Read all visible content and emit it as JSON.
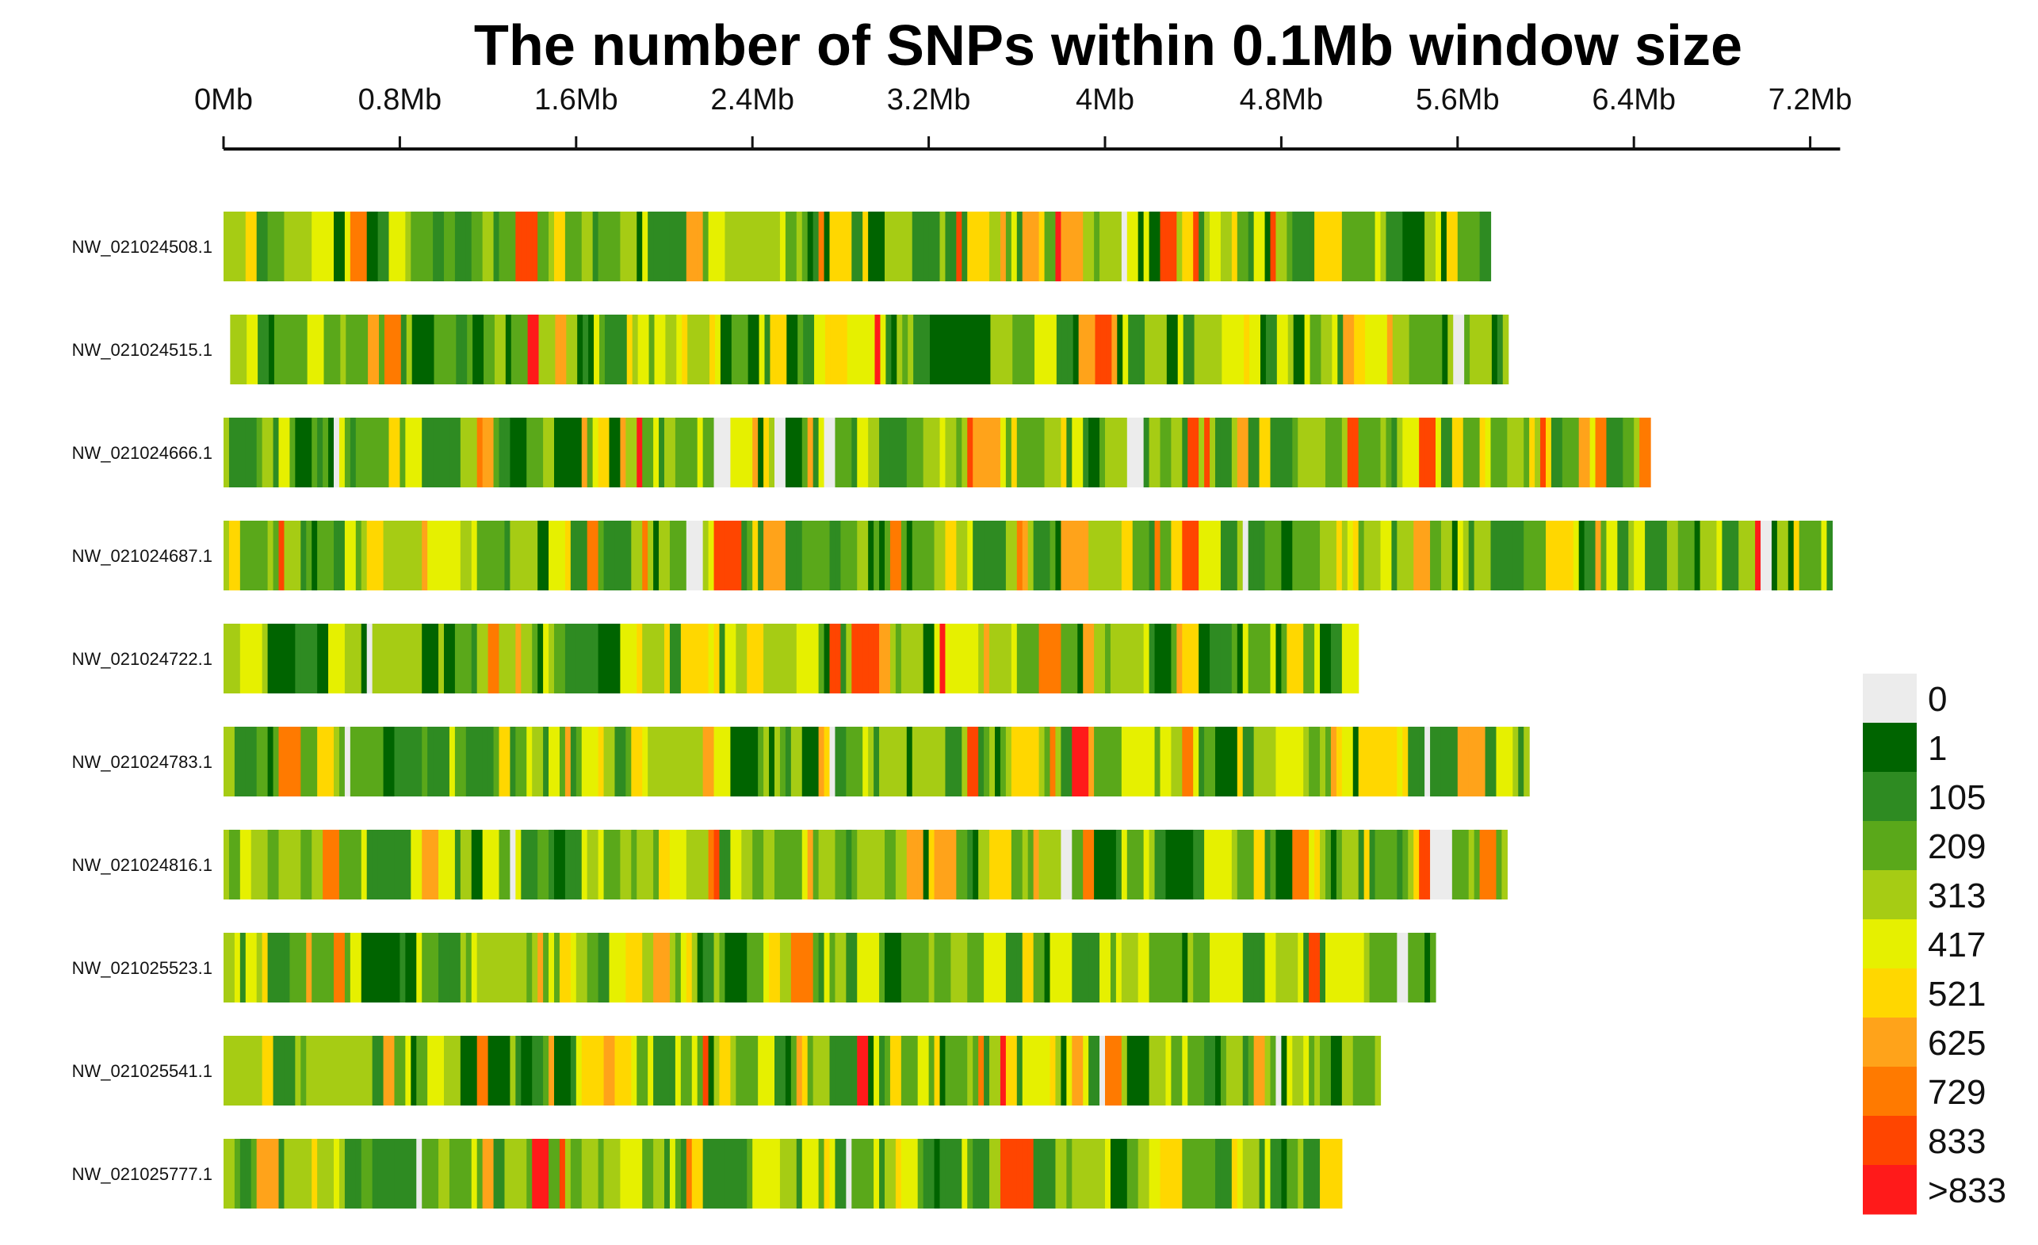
{
  "chart_data": {
    "type": "heatmap",
    "title": "The number of SNPs within 0.1Mb window size",
    "x_axis": {
      "unit": "Mb",
      "min": 0,
      "max": 7.3,
      "ticks": [
        0,
        0.8,
        1.6,
        2.4,
        3.2,
        4.0,
        4.8,
        5.6,
        6.4,
        7.2
      ],
      "tick_labels": [
        "0Mb",
        "0.8Mb",
        "1.6Mb",
        "2.4Mb",
        "3.2Mb",
        "4Mb",
        "4.8Mb",
        "5.6Mb",
        "6.4Mb",
        "7.2Mb"
      ]
    },
    "window_size_mb": 0.1,
    "rows": [
      {
        "name": "NW_021024508.1",
        "start_mb": 0.0,
        "length_mb": 5.75,
        "seed": 11
      },
      {
        "name": "NW_021024515.1",
        "start_mb": 0.03,
        "length_mb": 5.79,
        "seed": 23
      },
      {
        "name": "NW_021024666.1",
        "start_mb": 0.0,
        "length_mb": 6.48,
        "seed": 37
      },
      {
        "name": "NW_021024687.1",
        "start_mb": 0.0,
        "length_mb": 7.31,
        "seed": 41
      },
      {
        "name": "NW_021024722.1",
        "start_mb": 0.0,
        "length_mb": 5.14,
        "seed": 53
      },
      {
        "name": "NW_021024783.1",
        "start_mb": 0.0,
        "length_mb": 5.93,
        "seed": 67
      },
      {
        "name": "NW_021024816.1",
        "start_mb": 0.0,
        "length_mb": 5.83,
        "seed": 71
      },
      {
        "name": "NW_021025523.1",
        "start_mb": 0.0,
        "length_mb": 5.51,
        "seed": 83
      },
      {
        "name": "NW_021025541.1",
        "start_mb": 0.0,
        "length_mb": 5.26,
        "seed": 97
      },
      {
        "name": "NW_021025777.1",
        "start_mb": 0.0,
        "length_mb": 5.08,
        "seed": 101
      }
    ],
    "legend": {
      "bins": [
        {
          "label": "0",
          "color": "#ececec"
        },
        {
          "label": "1",
          "color": "#006400"
        },
        {
          "label": "105",
          "color": "#2e8b22"
        },
        {
          "label": "209",
          "color": "#5aa81a"
        },
        {
          "label": "313",
          "color": "#a6cc14"
        },
        {
          "label": "417",
          "color": "#e6f000"
        },
        {
          "label": "521",
          "color": "#ffd700"
        },
        {
          "label": "625",
          "color": "#ffa31a"
        },
        {
          "label": "729",
          "color": "#ff7a00"
        },
        {
          "label": "833",
          "color": "#ff4500"
        },
        {
          "label": ">833",
          "color": "#ff1a1a"
        }
      ]
    }
  }
}
